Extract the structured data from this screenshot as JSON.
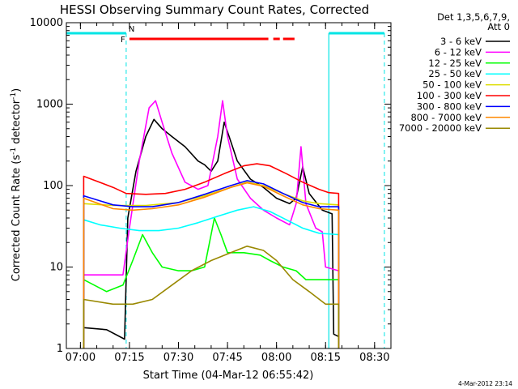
{
  "chart_data": {
    "type": "line",
    "title": "HESSI Observing Summary Count Rates, Corrected",
    "xlabel": "Start Time (04-Mar-12 06:55:42)",
    "ylabel_main": "Corrected Count Rate (s",
    "ylabel_sup1": "-1",
    "ylabel_mid": " detector",
    "ylabel_sup2": "-1",
    "ylabel_end": ")",
    "y_scale": "log",
    "ylim": [
      1,
      10000
    ],
    "xlim": [
      "06:55:42",
      "08:35:00"
    ],
    "x_ticks": [
      "07:00",
      "07:15",
      "07:30",
      "07:45",
      "08:00",
      "08:15",
      "08:30"
    ],
    "y_ticks": [
      "1",
      "10",
      "100",
      "1000",
      "10000"
    ],
    "grid": false,
    "footer_date": "4-Mar-2012 23:14",
    "legend": {
      "placement": "right-outside",
      "header": [
        "Det 1,3,5,6,7,9,",
        "Att 0"
      ],
      "entries": [
        {
          "label": "3 - 6 keV",
          "color": "#000000"
        },
        {
          "label": "6 - 12 keV",
          "color": "#ff00ff"
        },
        {
          "label": "12 - 25 keV",
          "color": "#00ff00"
        },
        {
          "label": "25 - 50 keV",
          "color": "#00ffff"
        },
        {
          "label": "50 - 100 keV",
          "color": "#dddd00"
        },
        {
          "label": "100 - 300 keV",
          "color": "#ff0000"
        },
        {
          "label": "300 - 800 keV",
          "color": "#0000ff"
        },
        {
          "label": "800 - 7000 keV",
          "color": "#ff8800"
        },
        {
          "label": "7000 - 20000 keV",
          "color": "#998800"
        }
      ]
    },
    "flags": {
      "night_label": "N",
      "flare_label": "F",
      "night_color": "#00e5e5",
      "flare_color": "#ff0000",
      "night_intervals": [
        [
          "06:55:42",
          "07:14:00"
        ],
        [
          "08:16:00",
          "08:33:00"
        ]
      ],
      "flare_intervals": [
        [
          "07:15:00",
          "07:57:30"
        ],
        [
          "07:59:00",
          "08:01:00"
        ],
        [
          "08:02:00",
          "08:05:30"
        ]
      ],
      "night_dashed_markers": [
        "07:14:00",
        "08:33:00"
      ],
      "night_solid_markers": [
        "08:16:00"
      ]
    },
    "data_window": [
      "07:01:00",
      "08:19:00"
    ],
    "series": [
      {
        "label": "3 - 6 keV",
        "color": "#000000",
        "points": [
          [
            "07:01:00",
            1.8
          ],
          [
            "07:08:00",
            1.7
          ],
          [
            "07:13:30",
            1.3
          ],
          [
            "07:14:30",
            40
          ],
          [
            "07:17:00",
            150
          ],
          [
            "07:20:00",
            400
          ],
          [
            "07:22:30",
            650
          ],
          [
            "07:25:00",
            500
          ],
          [
            "07:28:00",
            400
          ],
          [
            "07:32:00",
            300
          ],
          [
            "07:36:00",
            200
          ],
          [
            "07:38:00",
            180
          ],
          [
            "07:40:00",
            150
          ],
          [
            "07:42:00",
            200
          ],
          [
            "07:44:00",
            600
          ],
          [
            "07:45:30",
            400
          ],
          [
            "07:48:00",
            200
          ],
          [
            "07:52:00",
            120
          ],
          [
            "07:56:00",
            95
          ],
          [
            "08:00:00",
            70
          ],
          [
            "08:04:00",
            60
          ],
          [
            "08:06:00",
            70
          ],
          [
            "08:08:00",
            170
          ],
          [
            "08:10:00",
            80
          ],
          [
            "08:14:00",
            50
          ],
          [
            "08:17:00",
            45
          ],
          [
            "08:17:30",
            1.5
          ],
          [
            "08:19:00",
            1.4
          ]
        ]
      },
      {
        "label": "6 - 12 keV",
        "color": "#ff00ff",
        "points": [
          [
            "07:01:00",
            8
          ],
          [
            "07:13:00",
            8
          ],
          [
            "07:15:00",
            30
          ],
          [
            "07:18:00",
            200
          ],
          [
            "07:21:00",
            900
          ],
          [
            "07:23:00",
            1100
          ],
          [
            "07:25:00",
            600
          ],
          [
            "07:28:00",
            250
          ],
          [
            "07:32:00",
            110
          ],
          [
            "07:36:00",
            90
          ],
          [
            "07:39:00",
            100
          ],
          [
            "07:42:00",
            400
          ],
          [
            "07:43:30",
            1100
          ],
          [
            "07:45:00",
            400
          ],
          [
            "07:48:00",
            120
          ],
          [
            "07:52:00",
            70
          ],
          [
            "07:56:00",
            50
          ],
          [
            "08:00:00",
            40
          ],
          [
            "08:04:00",
            33
          ],
          [
            "08:06:00",
            60
          ],
          [
            "08:07:30",
            300
          ],
          [
            "08:09:00",
            60
          ],
          [
            "08:12:00",
            30
          ],
          [
            "08:14:00",
            27
          ],
          [
            "08:15:00",
            10
          ],
          [
            "08:19:00",
            9
          ]
        ]
      },
      {
        "label": "12 - 25 keV",
        "color": "#00ff00",
        "points": [
          [
            "07:01:00",
            7
          ],
          [
            "07:08:00",
            5
          ],
          [
            "07:13:00",
            6
          ],
          [
            "07:16:00",
            12
          ],
          [
            "07:19:00",
            25
          ],
          [
            "07:22:00",
            15
          ],
          [
            "07:25:00",
            10
          ],
          [
            "07:30:00",
            9
          ],
          [
            "07:34:00",
            9
          ],
          [
            "07:38:00",
            10
          ],
          [
            "07:41:00",
            40
          ],
          [
            "07:43:00",
            25
          ],
          [
            "07:45:00",
            15
          ],
          [
            "07:50:00",
            15
          ],
          [
            "07:55:00",
            14
          ],
          [
            "07:58:00",
            12
          ],
          [
            "08:02:00",
            10
          ],
          [
            "08:06:00",
            9
          ],
          [
            "08:09:00",
            7
          ],
          [
            "08:12:00",
            7
          ],
          [
            "08:15:00",
            7
          ],
          [
            "08:19:00",
            7
          ]
        ]
      },
      {
        "label": "25 - 50 keV",
        "color": "#00ffff",
        "points": [
          [
            "07:01:00",
            38
          ],
          [
            "07:06:00",
            33
          ],
          [
            "07:12:00",
            30
          ],
          [
            "07:18:00",
            28
          ],
          [
            "07:24:00",
            28
          ],
          [
            "07:30:00",
            30
          ],
          [
            "07:36:00",
            35
          ],
          [
            "07:42:00",
            42
          ],
          [
            "07:48:00",
            50
          ],
          [
            "07:53:00",
            55
          ],
          [
            "07:58:00",
            48
          ],
          [
            "08:03:00",
            38
          ],
          [
            "08:08:00",
            30
          ],
          [
            "08:13:00",
            26
          ],
          [
            "08:19:00",
            25
          ]
        ]
      },
      {
        "label": "50 - 100 keV",
        "color": "#dddd00",
        "points": [
          [
            "07:01:00",
            60
          ],
          [
            "07:10:00",
            57
          ],
          [
            "07:20:00",
            57
          ],
          [
            "07:30:00",
            62
          ],
          [
            "07:38:00",
            75
          ],
          [
            "07:46:00",
            95
          ],
          [
            "07:51:00",
            110
          ],
          [
            "07:56:00",
            100
          ],
          [
            "08:02:00",
            80
          ],
          [
            "08:08:00",
            65
          ],
          [
            "08:13:00",
            60
          ],
          [
            "08:19:00",
            58
          ]
        ]
      },
      {
        "label": "100 - 300 keV",
        "color": "#ff0000",
        "points": [
          [
            "07:01:00",
            130
          ],
          [
            "07:10:00",
            95
          ],
          [
            "07:14:00",
            80
          ],
          [
            "07:20:00",
            78
          ],
          [
            "07:26:00",
            80
          ],
          [
            "07:32:00",
            90
          ],
          [
            "07:38:00",
            110
          ],
          [
            "07:44:00",
            140
          ],
          [
            "07:50:00",
            175
          ],
          [
            "07:54:00",
            185
          ],
          [
            "07:58:00",
            175
          ],
          [
            "08:03:00",
            140
          ],
          [
            "08:08:00",
            110
          ],
          [
            "08:13:00",
            90
          ],
          [
            "08:16:00",
            82
          ],
          [
            "08:19:00",
            80
          ]
        ]
      },
      {
        "label": "300 - 800 keV",
        "color": "#0000ff",
        "points": [
          [
            "07:01:00",
            75
          ],
          [
            "07:10:00",
            58
          ],
          [
            "07:16:00",
            55
          ],
          [
            "07:22:00",
            55
          ],
          [
            "07:30:00",
            62
          ],
          [
            "07:38:00",
            78
          ],
          [
            "07:46:00",
            100
          ],
          [
            "07:51:00",
            115
          ],
          [
            "07:56:00",
            105
          ],
          [
            "08:02:00",
            80
          ],
          [
            "08:08:00",
            62
          ],
          [
            "08:13:00",
            55
          ],
          [
            "08:19:00",
            55
          ]
        ]
      },
      {
        "label": "800 - 7000 keV",
        "color": "#ff8800",
        "points": [
          [
            "07:01:00",
            70
          ],
          [
            "07:10:00",
            52
          ],
          [
            "07:16:00",
            50
          ],
          [
            "07:22:00",
            52
          ],
          [
            "07:30:00",
            58
          ],
          [
            "07:38:00",
            72
          ],
          [
            "07:46:00",
            95
          ],
          [
            "07:51:00",
            108
          ],
          [
            "07:56:00",
            98
          ],
          [
            "08:02:00",
            75
          ],
          [
            "08:08:00",
            58
          ],
          [
            "08:13:00",
            52
          ],
          [
            "08:19:00",
            50
          ]
        ]
      },
      {
        "label": "7000 - 20000 keV",
        "color": "#998800",
        "points": [
          [
            "07:01:00",
            4
          ],
          [
            "07:10:00",
            3.5
          ],
          [
            "07:16:00",
            3.5
          ],
          [
            "07:22:00",
            4
          ],
          [
            "07:28:00",
            6
          ],
          [
            "07:34:00",
            9
          ],
          [
            "07:40:00",
            12
          ],
          [
            "07:46:00",
            15
          ],
          [
            "07:51:00",
            18
          ],
          [
            "07:56:00",
            16
          ],
          [
            "08:00:00",
            12
          ],
          [
            "08:05:00",
            7
          ],
          [
            "08:10:00",
            5
          ],
          [
            "08:15:00",
            3.5
          ],
          [
            "08:19:00",
            3.5
          ]
        ]
      }
    ]
  }
}
